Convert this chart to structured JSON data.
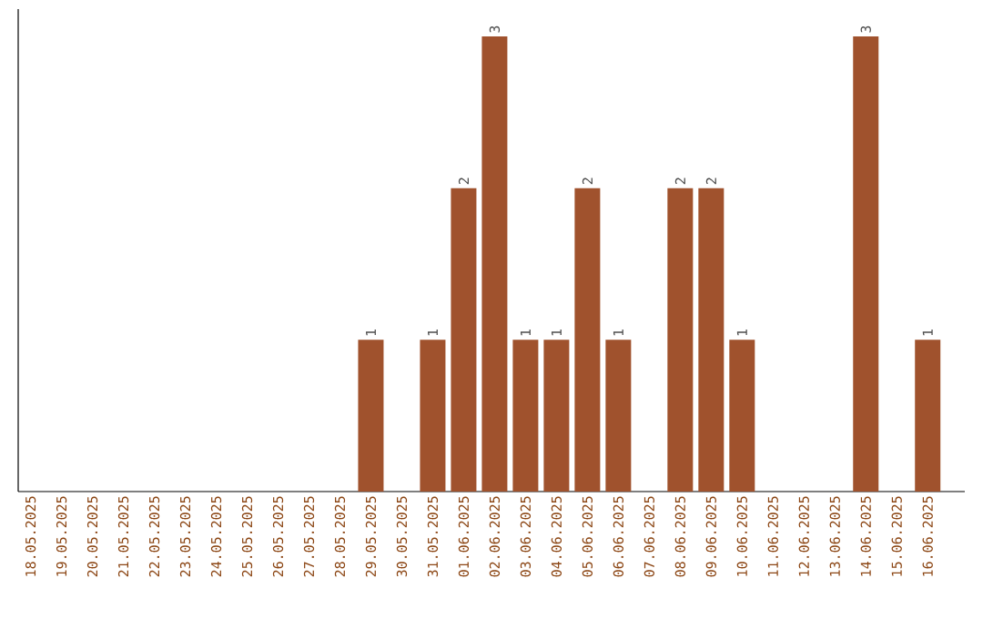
{
  "chart_data": {
    "type": "bar",
    "categories": [
      "18.05.2025",
      "19.05.2025",
      "20.05.2025",
      "21.05.2025",
      "22.05.2025",
      "23.05.2025",
      "24.05.2025",
      "25.05.2025",
      "26.05.2025",
      "27.05.2025",
      "28.05.2025",
      "29.05.2025",
      "30.05.2025",
      "31.05.2025",
      "01.06.2025",
      "02.06.2025",
      "03.06.2025",
      "04.06.2025",
      "05.06.2025",
      "06.06.2025",
      "07.06.2025",
      "08.06.2025",
      "09.06.2025",
      "10.06.2025",
      "11.06.2025",
      "12.06.2025",
      "13.06.2025",
      "14.06.2025",
      "15.06.2025",
      "16.06.2025"
    ],
    "values": [
      0,
      0,
      0,
      0,
      0,
      0,
      0,
      0,
      0,
      0,
      0,
      1,
      0,
      1,
      2,
      3,
      1,
      1,
      2,
      1,
      0,
      2,
      2,
      1,
      0,
      0,
      0,
      3,
      0,
      1
    ],
    "value_labels": [
      null,
      null,
      null,
      null,
      null,
      null,
      null,
      null,
      null,
      null,
      null,
      "1",
      null,
      "1",
      "2",
      "3",
      "1",
      "1",
      "2",
      "1",
      null,
      "2",
      "2",
      "1",
      null,
      null,
      null,
      "3",
      null,
      "1"
    ],
    "color": "#a0522d",
    "tick_labels": "x"
  }
}
